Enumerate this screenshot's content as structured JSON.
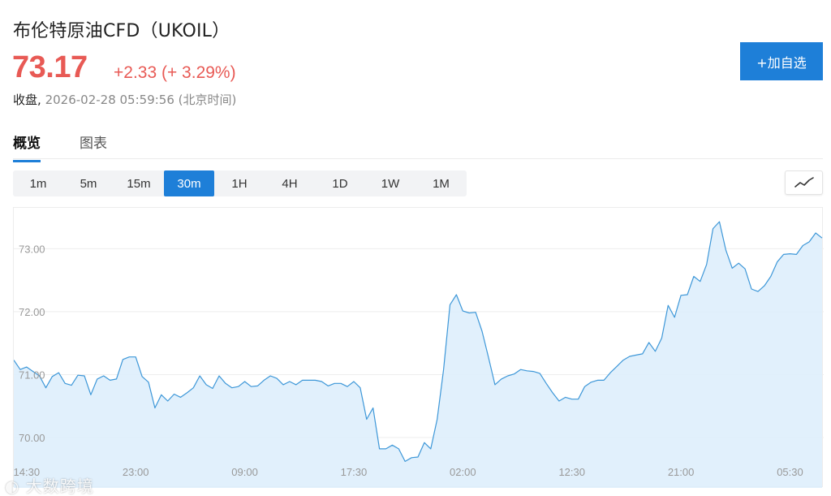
{
  "header": {
    "title": "布伦特原油CFD（UKOIL）",
    "price": "73.17",
    "change": "+2.33 (+ 3.29%)",
    "status_label": "收盘,",
    "timestamp": "2026-02-28 05:59:56 (北京时间)"
  },
  "watch_button": {
    "label": "+加自选"
  },
  "tabs": [
    {
      "label": "概览",
      "active": true
    },
    {
      "label": "图表",
      "active": false
    }
  ],
  "intervals": [
    {
      "label": "1m",
      "active": false
    },
    {
      "label": "5m",
      "active": false
    },
    {
      "label": "15m",
      "active": false
    },
    {
      "label": "30m",
      "active": true
    },
    {
      "label": "1H",
      "active": false
    },
    {
      "label": "4H",
      "active": false
    },
    {
      "label": "1D",
      "active": false
    },
    {
      "label": "1W",
      "active": false
    },
    {
      "label": "1M",
      "active": false
    }
  ],
  "chart_type_icon": "line-chart-icon",
  "colors": {
    "accent": "#1e7fd8",
    "up": "#e85a55",
    "line": "#3d97d8",
    "fill": "#dcedfb"
  },
  "watermark": "大数跨境",
  "chart_data": {
    "type": "area",
    "y_ticks": [
      "73.00",
      "72.00",
      "71.00",
      "70.00"
    ],
    "y_tick_values": [
      73.0,
      72.0,
      71.0,
      70.0
    ],
    "x_ticks": [
      "14:30",
      "23:00",
      "09:00",
      "17:30",
      "02:00",
      "12:30",
      "21:00",
      "05:30"
    ],
    "x_tick_index": [
      2,
      19,
      36,
      53,
      70,
      87,
      104,
      121
    ],
    "ylim": [
      69.2,
      73.65
    ],
    "grid": true,
    "values": [
      71.23,
      71.08,
      71.12,
      71.05,
      70.98,
      70.79,
      70.97,
      71.03,
      70.86,
      70.83,
      70.99,
      70.98,
      70.68,
      70.93,
      70.98,
      70.91,
      70.93,
      71.24,
      71.28,
      71.28,
      70.97,
      70.88,
      70.47,
      70.68,
      70.58,
      70.69,
      70.64,
      70.71,
      70.79,
      70.98,
      70.84,
      70.78,
      70.98,
      70.86,
      70.79,
      70.81,
      70.89,
      70.81,
      70.82,
      70.91,
      70.98,
      70.94,
      70.84,
      70.89,
      70.84,
      70.91,
      70.91,
      70.91,
      70.89,
      70.82,
      70.86,
      70.86,
      70.81,
      70.89,
      70.79,
      70.29,
      70.47,
      69.82,
      69.82,
      69.88,
      69.82,
      69.62,
      69.68,
      69.69,
      69.92,
      69.82,
      70.29,
      71.08,
      72.11,
      72.27,
      72.01,
      71.98,
      71.99,
      71.69,
      71.27,
      70.84,
      70.93,
      70.98,
      71.01,
      71.08,
      71.06,
      71.05,
      71.02,
      70.86,
      70.71,
      70.58,
      70.64,
      70.61,
      70.61,
      70.81,
      70.88,
      70.91,
      70.91,
      71.03,
      71.13,
      71.23,
      71.29,
      71.31,
      71.33,
      71.51,
      71.37,
      71.58,
      72.1,
      71.91,
      72.26,
      72.27,
      72.56,
      72.48,
      72.75,
      73.32,
      73.43,
      72.98,
      72.69,
      72.77,
      72.68,
      72.36,
      72.32,
      72.41,
      72.56,
      72.79,
      72.91,
      72.92,
      72.91,
      73.05,
      73.11,
      73.25,
      73.17
    ]
  }
}
